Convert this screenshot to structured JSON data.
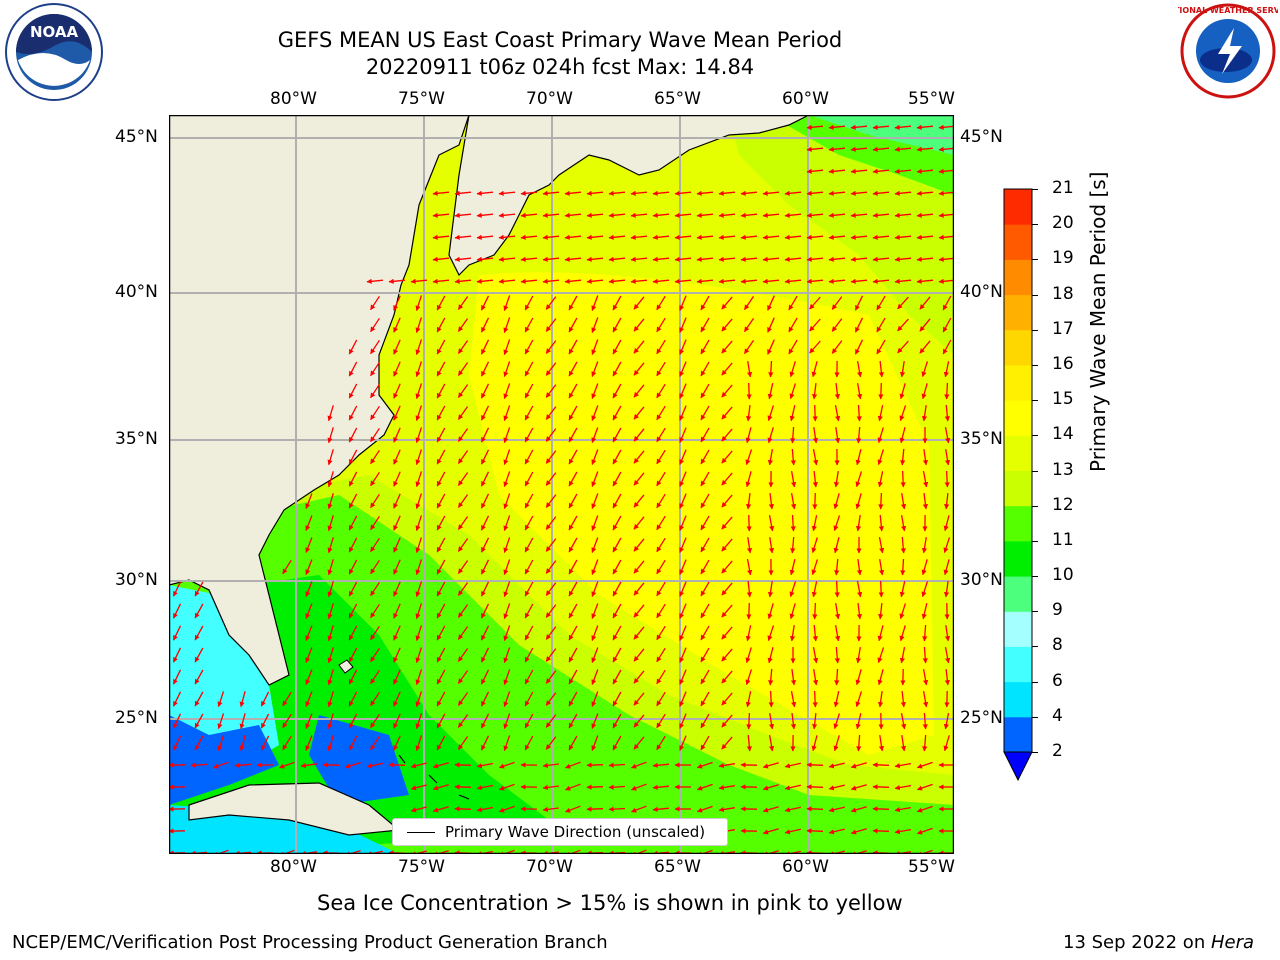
{
  "header": {
    "title_line1": "GEFS MEAN US East Coast Primary Wave Mean Period",
    "title_line2": "20220911 t06z 024h fcst   Max: 14.84",
    "logo_left_text": "NOAA",
    "logo_right_text": "NATIONAL WEATHER SERVICE"
  },
  "map": {
    "lon_labels": [
      "80°W",
      "75°W",
      "70°W",
      "65°W",
      "60°W",
      "55°W"
    ],
    "lat_labels": [
      "45°N",
      "40°N",
      "35°N",
      "30°N",
      "25°N"
    ],
    "legend_text": "Primary Wave Direction (unscaled)",
    "colors": {
      "land": "#efeedd",
      "grid": "#b0b0b0",
      "arrow": "#ff0000",
      "coast": "#000000"
    }
  },
  "colorbar": {
    "label": "Primary Wave Mean Period [s]",
    "ticks": [
      "2",
      "4",
      "6",
      "8",
      "9",
      "10",
      "11",
      "12",
      "13",
      "14",
      "15",
      "16",
      "17",
      "18",
      "19",
      "20",
      "21"
    ],
    "colors": [
      "#0064ff",
      "#00e4ff",
      "#43ffff",
      "#a4ffff",
      "#4cff7d",
      "#00ee00",
      "#55ff00",
      "#c9ff00",
      "#e6ff00",
      "#ffff00",
      "#ffef00",
      "#ffd700",
      "#ffb000",
      "#ff8c00",
      "#ff5a00",
      "#ff2b00",
      "#ff0000"
    ],
    "under_color": "#0000ff"
  },
  "notes": {
    "sea_ice": "Sea Ice Concentration > 15% is shown in pink to yellow"
  },
  "footer": {
    "left": "NCEP/EMC/Verification Post Processing Product Generation Branch",
    "date": "13 Sep 2022 on ",
    "host": "Hera"
  }
}
